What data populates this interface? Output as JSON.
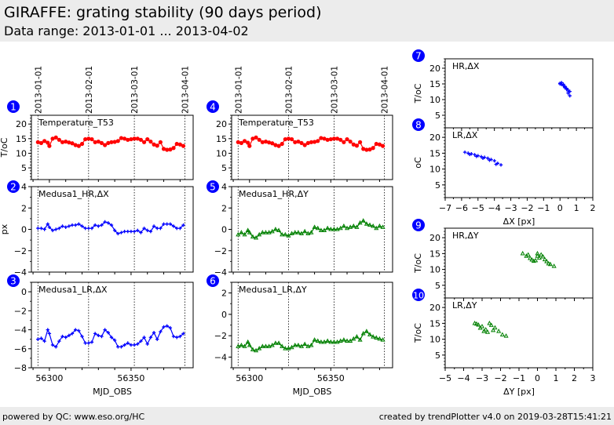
{
  "header": {
    "title": "GIRAFFE: grating stability (90 days period)",
    "subtitle": "Data range: 2013-01-01 ... 2013-04-02"
  },
  "footer": {
    "left": "powered by QC: www.eso.org/HC",
    "right": "created by trendPlotter v4.0 on 2019-03-28T15:41:21"
  },
  "colors": {
    "red": "#ff0000",
    "blue": "#0000ff",
    "green": "#008000",
    "badge": "#0000ff"
  },
  "chart_data": [
    {
      "id": 1,
      "type": "line",
      "label": "Temperature_T53",
      "ylabel": "T/oC",
      "ylim": [
        1,
        23
      ],
      "yticks": [
        5,
        10,
        15,
        20
      ],
      "color": "red",
      "marker": "circle",
      "date_lines": [
        "2013-01-01",
        "2013-02-01",
        "2013-03-01",
        "2013-04-01"
      ],
      "date_lines_mjd": [
        56293,
        56324,
        56352,
        56383
      ],
      "x": [
        56293,
        56295,
        56297,
        56299,
        56300,
        56302,
        56304,
        56306,
        56308,
        56310,
        56312,
        56314,
        56316,
        56318,
        56320,
        56322,
        56324,
        56326,
        56328,
        56330,
        56332,
        56334,
        56336,
        56338,
        56340,
        56342,
        56344,
        56346,
        56348,
        56350,
        56352,
        56354,
        56356,
        56358,
        56360,
        56362,
        56364,
        56366,
        56368,
        56370,
        56372,
        56374,
        56376,
        56378,
        56380,
        56382
      ],
      "y": [
        13.8,
        13.5,
        14.2,
        13.6,
        12.5,
        15.0,
        15.4,
        14.6,
        13.8,
        14.0,
        13.7,
        13.4,
        12.8,
        12.5,
        13.2,
        14.8,
        15.0,
        14.8,
        13.8,
        14.0,
        13.5,
        12.8,
        13.5,
        13.8,
        13.9,
        14.2,
        15.2,
        15.0,
        14.6,
        14.8,
        15.0,
        15.0,
        14.6,
        13.8,
        14.8,
        14.0,
        13.0,
        12.6,
        13.8,
        11.5,
        11.2,
        11.3,
        11.8,
        13.2,
        13.0,
        12.5
      ]
    },
    {
      "id": 2,
      "type": "line",
      "label": "Medusa1_HR,ΔX",
      "ylabel": "px",
      "ylim": [
        -4,
        4
      ],
      "yticks": [
        -4,
        -2,
        0,
        2,
        4
      ],
      "color": "blue",
      "marker": "plus",
      "x": [
        56293,
        56295,
        56297,
        56299,
        56300,
        56302,
        56304,
        56306,
        56308,
        56310,
        56312,
        56314,
        56316,
        56318,
        56320,
        56322,
        56324,
        56326,
        56328,
        56330,
        56332,
        56334,
        56336,
        56338,
        56340,
        56342,
        56344,
        56346,
        56348,
        56350,
        56352,
        56354,
        56356,
        56358,
        56360,
        56362,
        56364,
        56366,
        56368,
        56370,
        56372,
        56374,
        56376,
        56378,
        56380,
        56382
      ],
      "y": [
        0.1,
        0.1,
        0.0,
        0.5,
        0.2,
        -0.1,
        0.0,
        0.1,
        0.3,
        0.2,
        0.3,
        0.4,
        0.4,
        0.5,
        0.3,
        0.1,
        0.1,
        0.1,
        0.4,
        0.3,
        0.4,
        0.7,
        0.6,
        0.4,
        -0.1,
        -0.4,
        -0.3,
        -0.2,
        -0.2,
        -0.2,
        -0.2,
        -0.1,
        -0.3,
        0.1,
        -0.1,
        -0.2,
        0.3,
        0.1,
        0.1,
        0.5,
        0.5,
        0.5,
        0.3,
        0.1,
        0.1,
        0.4
      ]
    },
    {
      "id": 3,
      "type": "line",
      "label": "Medusa1_LR,ΔX",
      "ylabel": "",
      "ylim": [
        -8,
        1
      ],
      "yticks": [
        -8,
        -6,
        -4,
        -2,
        0
      ],
      "color": "blue",
      "marker": "plus",
      "xlabel": "MJD_OBS",
      "xticks": [
        56300,
        56350
      ],
      "x": [
        56293,
        56295,
        56297,
        56299,
        56300,
        56302,
        56304,
        56306,
        56308,
        56310,
        56312,
        56314,
        56316,
        56318,
        56320,
        56322,
        56324,
        56326,
        56328,
        56330,
        56332,
        56334,
        56336,
        56338,
        56340,
        56342,
        56344,
        56346,
        56348,
        56350,
        56352,
        56354,
        56356,
        56358,
        56360,
        56362,
        56364,
        56366,
        56368,
        56370,
        56372,
        56374,
        56376,
        56378,
        56380,
        56382
      ],
      "y": [
        -5.0,
        -4.9,
        -5.2,
        -4.0,
        -4.4,
        -5.6,
        -5.8,
        -5.2,
        -4.7,
        -4.8,
        -4.6,
        -4.4,
        -4.0,
        -4.1,
        -4.7,
        -5.4,
        -5.4,
        -5.3,
        -4.4,
        -4.6,
        -4.7,
        -4.0,
        -4.3,
        -4.8,
        -5.1,
        -5.8,
        -5.8,
        -5.6,
        -5.4,
        -5.6,
        -5.6,
        -5.5,
        -5.2,
        -4.8,
        -5.5,
        -4.8,
        -4.3,
        -5.0,
        -4.2,
        -3.7,
        -3.6,
        -3.8,
        -4.7,
        -4.8,
        -4.7,
        -4.4
      ]
    },
    {
      "id": 4,
      "type": "line",
      "label": "Temperature_T53",
      "ylabel": "T/oC",
      "ylim": [
        1,
        23
      ],
      "yticks": [
        5,
        10,
        15,
        20
      ],
      "color": "red",
      "marker": "circle",
      "date_lines": [
        "2013-01-01",
        "2013-02-01",
        "2013-03-01",
        "2013-04-01"
      ],
      "date_lines_mjd": [
        56293,
        56324,
        56352,
        56383
      ],
      "x": [
        56293,
        56295,
        56297,
        56299,
        56300,
        56302,
        56304,
        56306,
        56308,
        56310,
        56312,
        56314,
        56316,
        56318,
        56320,
        56322,
        56324,
        56326,
        56328,
        56330,
        56332,
        56334,
        56336,
        56338,
        56340,
        56342,
        56344,
        56346,
        56348,
        56350,
        56352,
        56354,
        56356,
        56358,
        56360,
        56362,
        56364,
        56366,
        56368,
        56370,
        56372,
        56374,
        56376,
        56378,
        56380,
        56382
      ],
      "y": [
        13.8,
        13.5,
        14.2,
        13.6,
        12.5,
        15.0,
        15.4,
        14.6,
        13.8,
        14.0,
        13.7,
        13.4,
        12.8,
        12.5,
        13.2,
        14.8,
        15.0,
        14.8,
        13.8,
        14.0,
        13.5,
        12.8,
        13.5,
        13.8,
        13.9,
        14.2,
        15.2,
        15.0,
        14.6,
        14.8,
        15.0,
        15.0,
        14.6,
        13.8,
        14.8,
        14.0,
        13.0,
        12.6,
        13.8,
        11.5,
        11.2,
        11.3,
        11.8,
        13.2,
        13.0,
        12.5
      ]
    },
    {
      "id": 5,
      "type": "line",
      "label": "Medusa1_HR,ΔY",
      "ylabel": "",
      "ylim": [
        -4,
        4
      ],
      "yticks": [
        -4,
        -2,
        0,
        2,
        4
      ],
      "color": "green",
      "marker": "triangle",
      "x": [
        56293,
        56295,
        56297,
        56299,
        56300,
        56302,
        56304,
        56306,
        56308,
        56310,
        56312,
        56314,
        56316,
        56318,
        56320,
        56322,
        56324,
        56326,
        56328,
        56330,
        56332,
        56334,
        56336,
        56338,
        56340,
        56342,
        56344,
        56346,
        56348,
        56350,
        56352,
        56354,
        56356,
        56358,
        56360,
        56362,
        56364,
        56366,
        56368,
        56370,
        56372,
        56374,
        56376,
        56378,
        56380,
        56382
      ],
      "y": [
        -0.5,
        -0.3,
        -0.5,
        -0.1,
        -0.3,
        -0.7,
        -0.8,
        -0.5,
        -0.3,
        -0.3,
        -0.3,
        -0.2,
        0.0,
        -0.1,
        -0.5,
        -0.5,
        -0.6,
        -0.4,
        -0.3,
        -0.3,
        -0.4,
        -0.2,
        -0.4,
        -0.3,
        0.2,
        0.1,
        -0.1,
        -0.1,
        0.1,
        0.0,
        0.0,
        0.0,
        0.1,
        0.3,
        0.1,
        0.2,
        0.3,
        0.2,
        0.6,
        0.8,
        0.5,
        0.4,
        0.3,
        0.1,
        0.3,
        0.2
      ]
    },
    {
      "id": 6,
      "type": "line",
      "label": "Medusa1_LR,ΔY",
      "ylabel": "",
      "ylim": [
        -5,
        3
      ],
      "yticks": [
        -4,
        -2,
        0,
        2
      ],
      "color": "green",
      "marker": "triangle",
      "xlabel": "MJD_OBS",
      "xticks": [
        56300,
        56350
      ],
      "x": [
        56293,
        56295,
        56297,
        56299,
        56300,
        56302,
        56304,
        56306,
        56308,
        56310,
        56312,
        56314,
        56316,
        56318,
        56320,
        56322,
        56324,
        56326,
        56328,
        56330,
        56332,
        56334,
        56336,
        56338,
        56340,
        56342,
        56344,
        56346,
        56348,
        56350,
        56352,
        56354,
        56356,
        56358,
        56360,
        56362,
        56364,
        56366,
        56368,
        56370,
        56372,
        56374,
        56376,
        56378,
        56380,
        56382
      ],
      "y": [
        -3.0,
        -2.9,
        -3.0,
        -2.6,
        -2.9,
        -3.3,
        -3.4,
        -3.2,
        -3.0,
        -3.0,
        -3.0,
        -2.9,
        -2.7,
        -2.7,
        -3.0,
        -3.2,
        -3.2,
        -3.1,
        -2.9,
        -2.9,
        -3.0,
        -2.8,
        -3.0,
        -2.9,
        -2.4,
        -2.5,
        -2.6,
        -2.6,
        -2.5,
        -2.6,
        -2.6,
        -2.6,
        -2.5,
        -2.4,
        -2.5,
        -2.5,
        -2.3,
        -2.1,
        -2.4,
        -1.8,
        -1.6,
        -1.9,
        -2.1,
        -2.2,
        -2.3,
        -2.4
      ]
    },
    {
      "id": 7,
      "type": "scatter",
      "label": "HR,ΔX",
      "ylabel": "T/oC",
      "xlim": [
        -7,
        2
      ],
      "ylim": [
        1,
        23
      ],
      "yticks": [
        5,
        10,
        15,
        20
      ],
      "color": "blue",
      "marker": "plus",
      "x": [
        0.0,
        0.1,
        0.2,
        0.3,
        0.4,
        0.5,
        0.6,
        0.1,
        0.3,
        0.5,
        0.2,
        0.4,
        0.6,
        0.0,
        0.3,
        0.5
      ],
      "y": [
        15.2,
        14.8,
        14.5,
        14.0,
        13.6,
        13.0,
        12.6,
        15.4,
        14.2,
        12.0,
        14.9,
        13.3,
        11.2,
        15.0,
        13.8,
        12.5
      ]
    },
    {
      "id": 8,
      "type": "scatter",
      "label": "LR,ΔX",
      "ylabel": "oC",
      "xlim": [
        -7,
        2
      ],
      "ylim": [
        1,
        23
      ],
      "yticks": [
        5,
        10,
        15,
        20
      ],
      "color": "blue",
      "marker": "plus",
      "xlabel": "ΔX [px]",
      "xticks": [
        -7,
        -6,
        -5,
        -4,
        -3,
        -2,
        -1,
        0,
        1,
        2
      ],
      "x": [
        -5.8,
        -5.6,
        -5.4,
        -5.2,
        -5.0,
        -4.8,
        -4.6,
        -4.4,
        -4.2,
        -4.0,
        -3.8,
        -3.6,
        -5.5,
        -5.1,
        -4.7,
        -4.3,
        -3.9
      ],
      "y": [
        15.3,
        15.0,
        14.8,
        14.5,
        14.2,
        13.9,
        13.7,
        13.4,
        13.0,
        12.6,
        11.8,
        11.3,
        14.6,
        14.0,
        13.4,
        12.8,
        11.5
      ]
    },
    {
      "id": 9,
      "type": "scatter",
      "label": "HR,ΔY",
      "ylabel": "T/oC",
      "xlim": [
        -5,
        3
      ],
      "ylim": [
        1,
        23
      ],
      "yticks": [
        5,
        10,
        15,
        20
      ],
      "color": "green",
      "marker": "triangle",
      "x": [
        -0.8,
        -0.6,
        -0.4,
        -0.2,
        -0.5,
        -0.3,
        0.0,
        0.2,
        0.1,
        0.3,
        0.5,
        0.7,
        0.9,
        0.0,
        -0.1,
        0.4,
        0.6
      ],
      "y": [
        15.0,
        14.2,
        13.5,
        12.6,
        14.6,
        13.0,
        15.0,
        14.6,
        13.6,
        14.0,
        12.5,
        11.6,
        11.0,
        14.2,
        12.8,
        13.1,
        11.8
      ]
    },
    {
      "id": 10,
      "type": "scatter",
      "label": "LR,ΔY",
      "ylabel": "T/oC",
      "xlim": [
        -5,
        3
      ],
      "ylim": [
        1,
        23
      ],
      "yticks": [
        5,
        10,
        15,
        20
      ],
      "color": "green",
      "marker": "triangle",
      "xlabel": "ΔY [px]",
      "xticks": [
        -5,
        -4,
        -3,
        -2,
        -1,
        0,
        1,
        2,
        3
      ],
      "x": [
        -3.4,
        -3.2,
        -3.0,
        -2.8,
        -2.6,
        -3.1,
        -2.9,
        -2.5,
        -2.3,
        -2.1,
        -1.9,
        -1.7,
        -2.7,
        -2.4,
        -3.3
      ],
      "y": [
        15.0,
        14.5,
        14.0,
        13.0,
        15.0,
        13.5,
        12.5,
        14.4,
        13.6,
        12.5,
        11.4,
        11.0,
        12.2,
        12.8,
        14.8
      ]
    }
  ]
}
